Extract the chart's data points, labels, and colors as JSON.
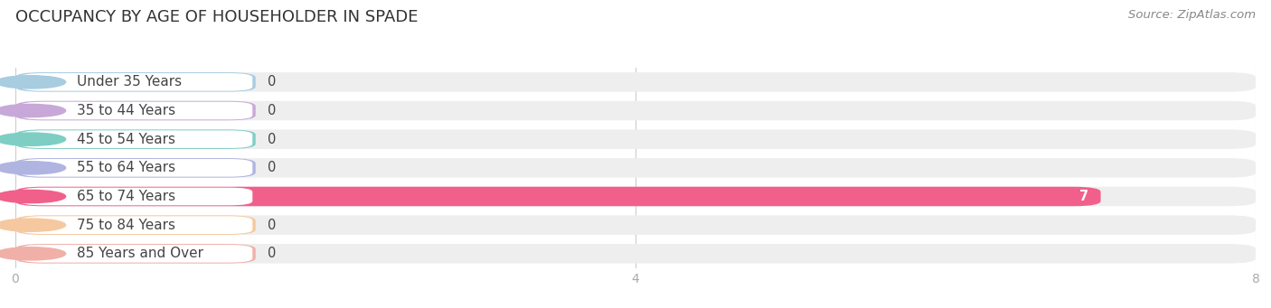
{
  "title": "OCCUPANCY BY AGE OF HOUSEHOLDER IN SPADE",
  "source": "Source: ZipAtlas.com",
  "categories": [
    "Under 35 Years",
    "35 to 44 Years",
    "45 to 54 Years",
    "55 to 64 Years",
    "65 to 74 Years",
    "75 to 84 Years",
    "85 Years and Over"
  ],
  "values": [
    0,
    0,
    0,
    0,
    7,
    0,
    0
  ],
  "bar_colors": [
    "#a8cce0",
    "#c8a8d8",
    "#7ecec4",
    "#b0b4e0",
    "#f0608a",
    "#f5c8a0",
    "#f0b0a8"
  ],
  "bar_bg_color": "#eeeeee",
  "xlim": [
    0,
    8
  ],
  "xticks": [
    0,
    4,
    8
  ],
  "background_color": "#ffffff",
  "title_fontsize": 13,
  "source_fontsize": 9.5,
  "label_fontsize": 11,
  "value_fontsize": 10.5,
  "bar_height": 0.68,
  "title_color": "#333333",
  "label_color": "#444444",
  "tick_color": "#aaaaaa",
  "source_color": "#888888",
  "grid_color": "#cccccc"
}
